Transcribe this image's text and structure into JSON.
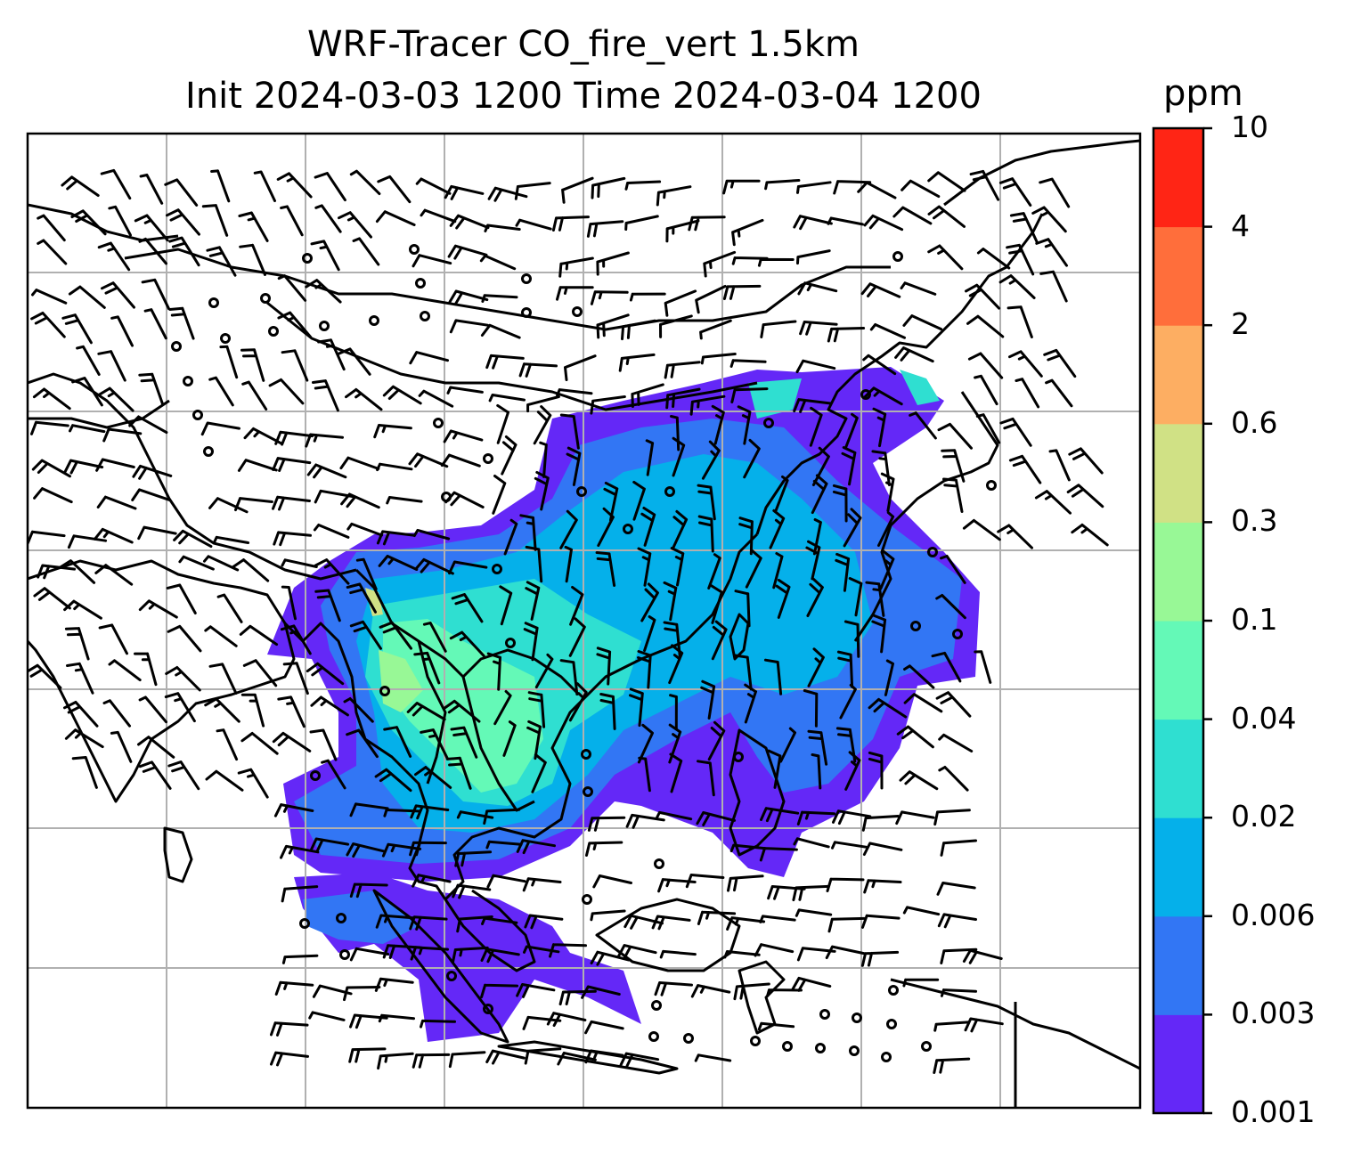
{
  "title": {
    "line1": "WRF-Tracer CO_fire_vert 1.5km",
    "line2": "Init 2024-03-03 1200 Time 2024-03-04 1200"
  },
  "colorbar": {
    "unit": "ppm",
    "levels": [
      "0.001",
      "0.003",
      "0.006",
      "0.02",
      "0.04",
      "0.1",
      "0.3",
      "0.6",
      "2",
      "4",
      "10"
    ],
    "colors": [
      "#6428f7",
      "#3276f4",
      "#05b0ea",
      "#2fdfd1",
      "#64f9b7",
      "#98f896",
      "#d0e185",
      "#fdae62",
      "#ff6e3b",
      "#ff2515"
    ]
  },
  "map": {
    "gridlines": true,
    "colors": {
      "coast": "#000000",
      "grid": "#b0b0b0",
      "barb": "#000000"
    }
  }
}
